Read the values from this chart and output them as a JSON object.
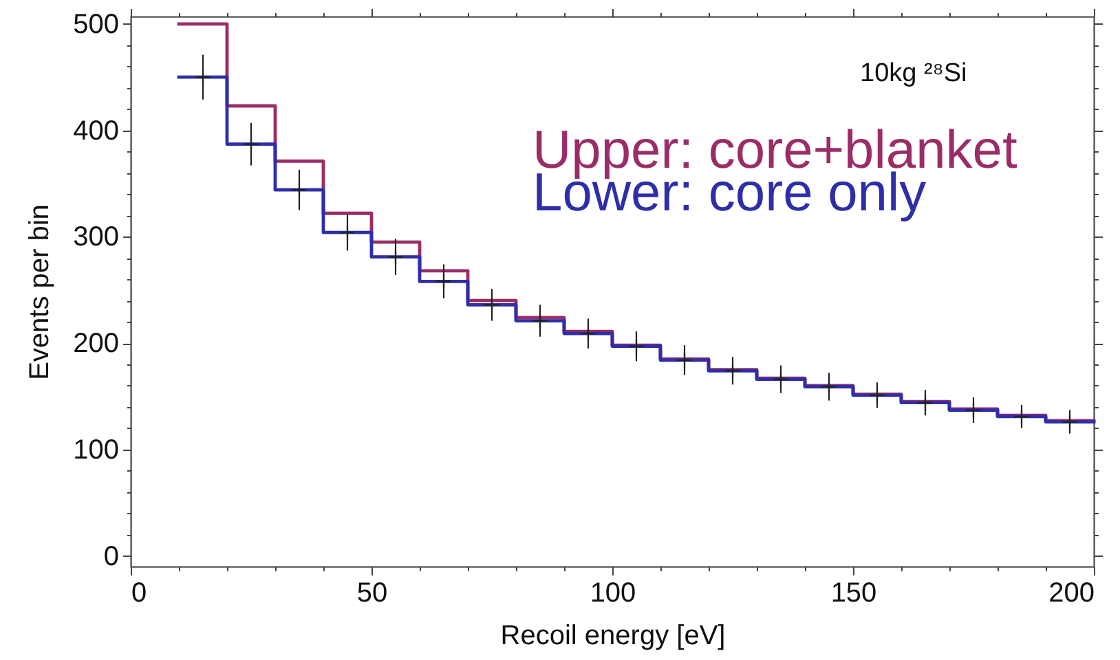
{
  "chart_data": {
    "type": "step",
    "xlabel": "Recoil energy [eV]",
    "ylabel": "Events per bin",
    "annotations": [
      "10kg ²⁸Si"
    ],
    "x": [
      10,
      20,
      30,
      40,
      50,
      60,
      70,
      80,
      90,
      100,
      110,
      120,
      130,
      140,
      150,
      160,
      170,
      180,
      190,
      200
    ],
    "series": [
      {
        "name": "Upper: core+blanket",
        "color": "#9a2d66",
        "values": [
          500,
          423,
          371,
          322,
          295,
          268,
          240,
          224,
          211,
          198,
          185,
          175,
          167,
          160,
          152,
          145,
          138,
          132,
          127,
          127
        ]
      },
      {
        "name": "Lower: core only",
        "color": "#2e2ea8",
        "values": [
          450,
          387,
          344,
          304,
          281,
          258,
          236,
          221,
          209,
          197,
          184,
          174,
          166,
          159,
          151,
          144,
          137,
          131,
          126,
          126
        ]
      },
      {
        "type": "scatter",
        "color": "#222222",
        "marker": "cross",
        "x": [
          15,
          25,
          35,
          45,
          55,
          65,
          75,
          85,
          95,
          105,
          115,
          125,
          135,
          145,
          155,
          165,
          175,
          185,
          195
        ],
        "values": [
          450,
          387,
          344,
          304,
          281,
          258,
          236,
          221,
          209,
          197,
          184,
          174,
          166,
          159,
          151,
          144,
          137,
          131,
          126
        ],
        "errors": [
          21,
          20,
          19,
          17,
          17,
          16,
          15,
          15,
          14,
          14,
          14,
          13,
          13,
          13,
          12,
          12,
          12,
          11,
          11
        ]
      }
    ],
    "xlim": [
      0,
      200
    ],
    "ylim": [
      -10,
      507
    ],
    "xticks": [
      0,
      {
        "value": 10,
        "label": null
      },
      {
        "value": 20,
        "label": null
      },
      {
        "value": 30,
        "label": null
      },
      {
        "value": 40,
        "label": null
      },
      50,
      {
        "value": 60,
        "label": null
      },
      {
        "value": 70,
        "label": null
      },
      {
        "value": 80,
        "label": null
      },
      {
        "value": 90,
        "label": null
      },
      100,
      {
        "value": 110,
        "label": null
      },
      {
        "value": 120,
        "label": null
      },
      {
        "value": 130,
        "label": null
      },
      {
        "value": 140,
        "label": null
      },
      150,
      {
        "value": 160,
        "label": null
      },
      {
        "value": 170,
        "label": null
      },
      {
        "value": 180,
        "label": null
      },
      {
        "value": 190,
        "label": null
      },
      200
    ],
    "yticks": [
      0,
      {
        "value": 20,
        "label": null
      },
      {
        "value": 40,
        "label": null
      },
      {
        "value": 60,
        "label": null
      },
      {
        "value": 80,
        "label": null
      },
      100,
      {
        "value": 120,
        "label": null
      },
      {
        "value": 140,
        "label": null
      },
      {
        "value": 160,
        "label": null
      },
      {
        "value": 180,
        "label": null
      },
      200,
      {
        "value": 220,
        "label": null
      },
      {
        "value": 240,
        "label": null
      },
      {
        "value": 260,
        "label": null
      },
      {
        "value": 280,
        "label": null
      },
      300,
      {
        "value": 320,
        "label": null
      },
      {
        "value": 340,
        "label": null
      },
      {
        "value": 360,
        "label": null
      },
      {
        "value": 380,
        "label": null
      },
      400,
      {
        "value": 420,
        "label": null
      },
      {
        "value": 440,
        "label": null
      },
      {
        "value": 460,
        "label": null
      },
      {
        "value": 480,
        "label": null
      },
      500
    ],
    "legend": "top right"
  }
}
